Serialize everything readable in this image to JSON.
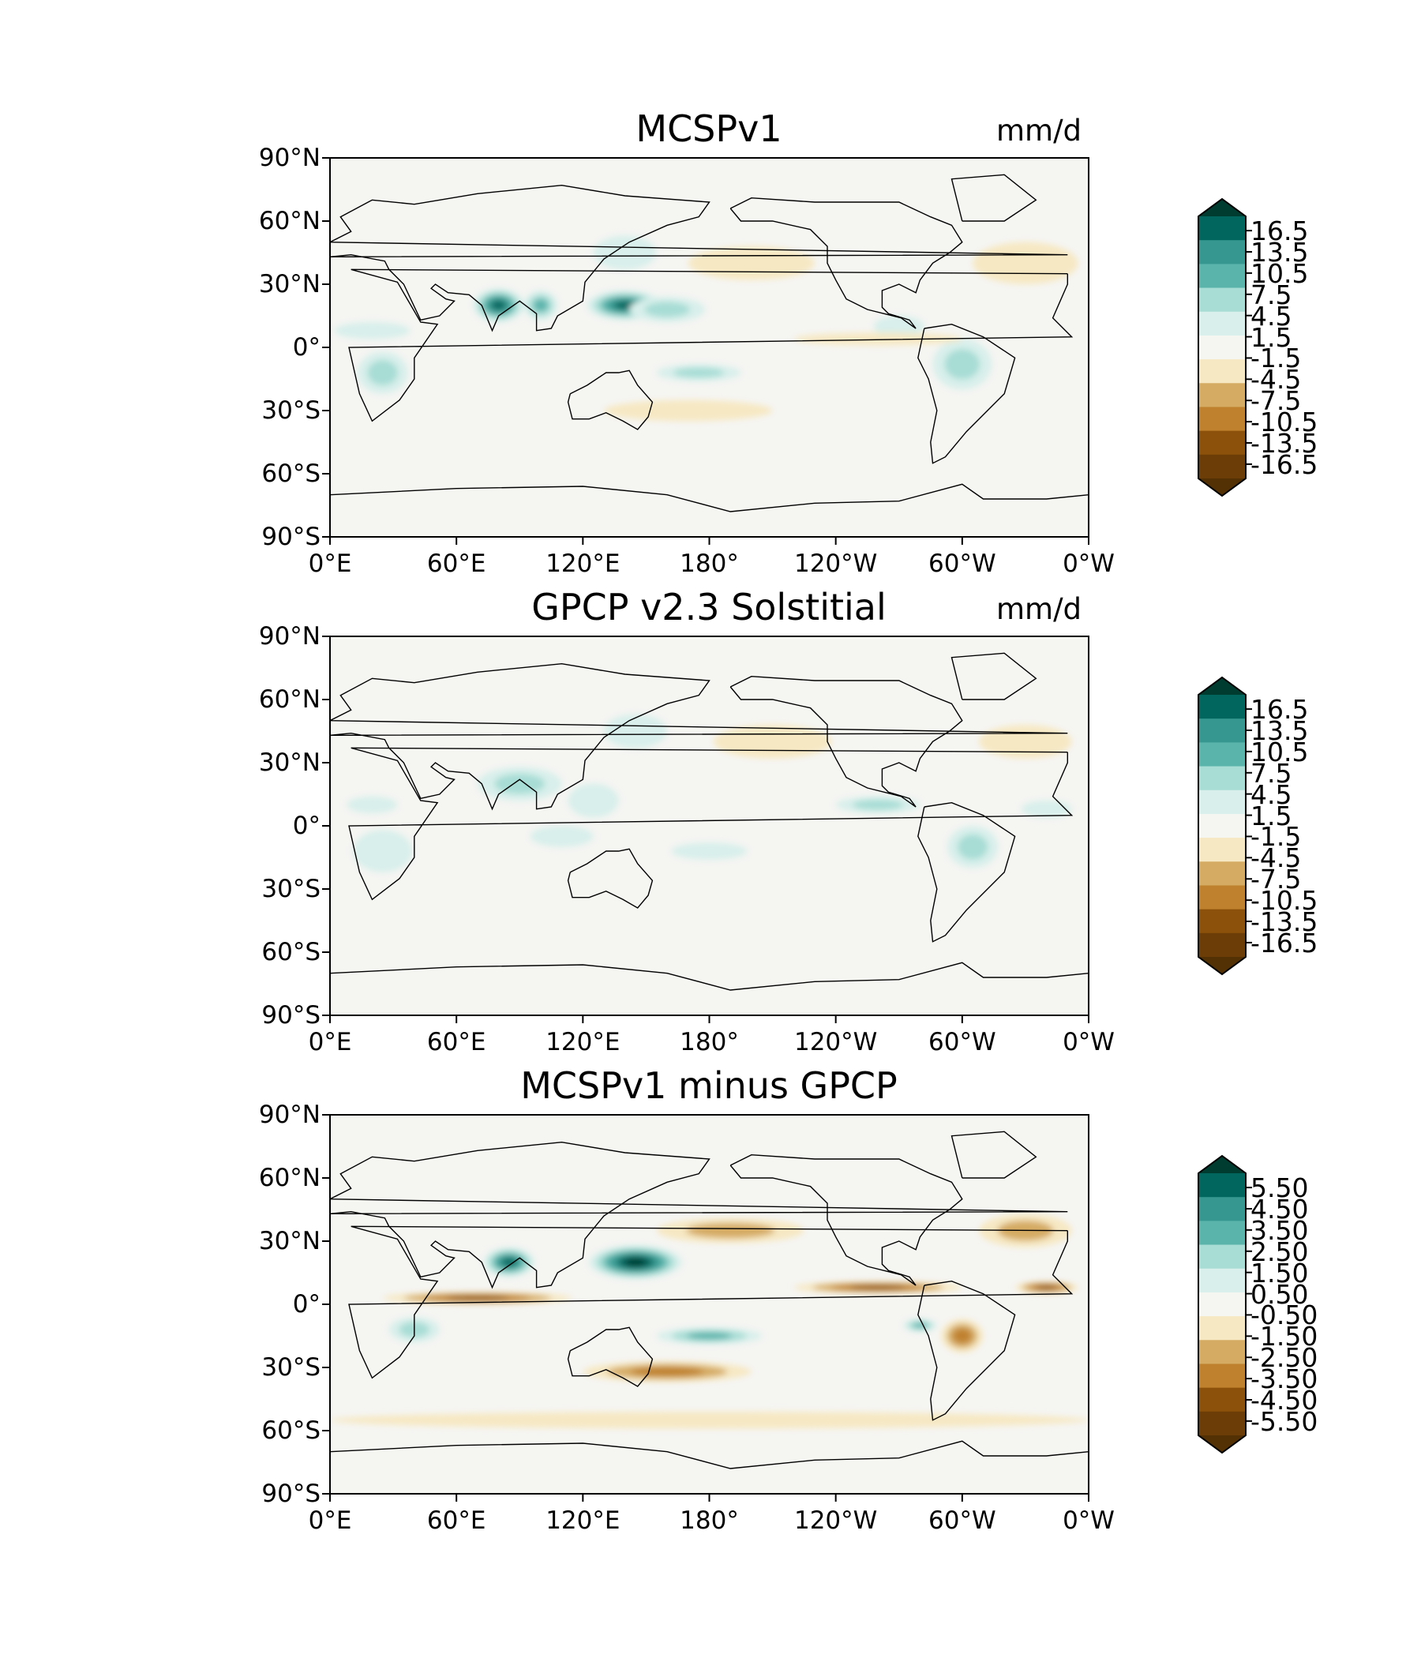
{
  "chart_data": [
    {
      "type": "heatmap",
      "title": "MCSPv1",
      "units": "mm/d",
      "xlabel": "",
      "ylabel": "",
      "xticks": [
        "0°E",
        "60°E",
        "120°E",
        "180°",
        "120°W",
        "60°W",
        "0°W"
      ],
      "yticks": [
        "90°N",
        "60°N",
        "30°N",
        "0°",
        "30°S",
        "60°S",
        "90°S"
      ],
      "xlim": [
        0,
        360
      ],
      "ylim": [
        -90,
        90
      ],
      "colorbar": {
        "labels": [
          "16.5",
          "13.5",
          "10.5",
          "7.5",
          "4.5",
          "1.5",
          "-1.5",
          "-4.5",
          "-7.5",
          "-10.5",
          "-13.5",
          "-16.5"
        ],
        "extend": "both"
      },
      "fields": [
        {
          "lon": 80,
          "lat": 20,
          "value": 14,
          "rx": 12,
          "ry": 8
        },
        {
          "lon": 100,
          "lat": 20,
          "value": 10,
          "rx": 8,
          "ry": 7
        },
        {
          "lon": 140,
          "lat": 20,
          "value": 16,
          "rx": 18,
          "ry": 7
        },
        {
          "lon": 160,
          "lat": 18,
          "value": 7,
          "rx": 18,
          "ry": 6
        },
        {
          "lon": 175,
          "lat": -12,
          "value": 6,
          "rx": 20,
          "ry": 4
        },
        {
          "lon": 25,
          "lat": -12,
          "value": 6,
          "rx": 12,
          "ry": 10
        },
        {
          "lon": 300,
          "lat": -8,
          "value": 6,
          "rx": 14,
          "ry": 12
        },
        {
          "lon": 270,
          "lat": 10,
          "value": 4,
          "rx": 12,
          "ry": 5
        },
        {
          "lon": 20,
          "lat": 8,
          "value": 3,
          "rx": 18,
          "ry": 4
        },
        {
          "lon": 140,
          "lat": 45,
          "value": 3,
          "rx": 15,
          "ry": 8
        },
        {
          "lon": 200,
          "lat": 40,
          "value": -3,
          "rx": 30,
          "ry": 8
        },
        {
          "lon": 330,
          "lat": 40,
          "value": -3,
          "rx": 25,
          "ry": 10
        },
        {
          "lon": 170,
          "lat": -30,
          "value": -3,
          "rx": 40,
          "ry": 5
        },
        {
          "lon": 260,
          "lat": 4,
          "value": -3,
          "rx": 40,
          "ry": 3
        }
      ]
    },
    {
      "type": "heatmap",
      "title": "GPCP v2.3 Solstitial",
      "units": "mm/d",
      "xlabel": "",
      "ylabel": "",
      "xticks": [
        "0°E",
        "60°E",
        "120°E",
        "180°",
        "120°W",
        "60°W",
        "0°W"
      ],
      "yticks": [
        "90°N",
        "60°N",
        "30°N",
        "0°",
        "30°S",
        "60°S",
        "90°S"
      ],
      "xlim": [
        0,
        360
      ],
      "ylim": [
        -90,
        90
      ],
      "colorbar": {
        "labels": [
          "16.5",
          "13.5",
          "10.5",
          "7.5",
          "4.5",
          "1.5",
          "-1.5",
          "-4.5",
          "-7.5",
          "-10.5",
          "-13.5",
          "-16.5"
        ],
        "extend": "both"
      },
      "fields": [
        {
          "lon": 90,
          "lat": 20,
          "value": 7,
          "rx": 20,
          "ry": 8
        },
        {
          "lon": 125,
          "lat": 12,
          "value": 4,
          "rx": 12,
          "ry": 8
        },
        {
          "lon": 110,
          "lat": -5,
          "value": 4,
          "rx": 15,
          "ry": 5
        },
        {
          "lon": 180,
          "lat": -12,
          "value": 4,
          "rx": 18,
          "ry": 4
        },
        {
          "lon": 25,
          "lat": -12,
          "value": 4,
          "rx": 14,
          "ry": 10
        },
        {
          "lon": 305,
          "lat": -10,
          "value": 6,
          "rx": 12,
          "ry": 10
        },
        {
          "lon": 260,
          "lat": 10,
          "value": 5,
          "rx": 20,
          "ry": 4
        },
        {
          "lon": 340,
          "lat": 8,
          "value": 4,
          "rx": 12,
          "ry": 4
        },
        {
          "lon": 20,
          "lat": 10,
          "value": 4,
          "rx": 12,
          "ry": 4
        },
        {
          "lon": 145,
          "lat": 45,
          "value": 2,
          "rx": 15,
          "ry": 8
        },
        {
          "lon": 210,
          "lat": 40,
          "value": -2,
          "rx": 28,
          "ry": 8
        },
        {
          "lon": 330,
          "lat": 40,
          "value": -2,
          "rx": 22,
          "ry": 8
        }
      ]
    },
    {
      "type": "heatmap",
      "title": "MCSPv1 minus GPCP",
      "units": "",
      "xlabel": "",
      "ylabel": "",
      "xticks": [
        "0°E",
        "60°E",
        "120°E",
        "180°",
        "120°W",
        "60°W",
        "0°W"
      ],
      "yticks": [
        "90°N",
        "60°N",
        "30°N",
        "0°",
        "30°S",
        "60°S",
        "90°S"
      ],
      "xlim": [
        0,
        360
      ],
      "ylim": [
        -90,
        90
      ],
      "colorbar": {
        "labels": [
          "5.50",
          "4.50",
          "3.50",
          "2.50",
          "1.50",
          "0.50",
          "-0.50",
          "-1.50",
          "-2.50",
          "-3.50",
          "-4.50",
          "-5.50"
        ],
        "extend": "both"
      },
      "fields": [
        {
          "lon": 145,
          "lat": 20,
          "value": 6,
          "rx": 22,
          "ry": 8
        },
        {
          "lon": 85,
          "lat": 20,
          "value": 5,
          "rx": 12,
          "ry": 7
        },
        {
          "lon": 180,
          "lat": -15,
          "value": 3,
          "rx": 25,
          "ry": 4
        },
        {
          "lon": 70,
          "lat": 3,
          "value": -4,
          "rx": 45,
          "ry": 3
        },
        {
          "lon": 260,
          "lat": 8,
          "value": -4,
          "rx": 40,
          "ry": 3
        },
        {
          "lon": 340,
          "lat": 8,
          "value": -4,
          "rx": 15,
          "ry": 3
        },
        {
          "lon": 160,
          "lat": -32,
          "value": -3,
          "rx": 40,
          "ry": 5
        },
        {
          "lon": 190,
          "lat": 35,
          "value": -2,
          "rx": 35,
          "ry": 6
        },
        {
          "lon": 180,
          "lat": -55,
          "value": -1,
          "rx": 180,
          "ry": 4
        },
        {
          "lon": 300,
          "lat": -15,
          "value": -3,
          "rx": 10,
          "ry": 8
        },
        {
          "lon": 40,
          "lat": -12,
          "value": 2,
          "rx": 12,
          "ry": 6
        },
        {
          "lon": 330,
          "lat": 35,
          "value": -2,
          "rx": 22,
          "ry": 8
        },
        {
          "lon": 280,
          "lat": -10,
          "value": 3,
          "rx": 8,
          "ry": 3
        }
      ]
    }
  ],
  "colors": {
    "palette": [
      "#543005",
      "#6d3d08",
      "#8c510a",
      "#bf812d",
      "#d5ab63",
      "#f6e8c3",
      "#f5f5f2",
      "#d8efeb",
      "#a7ddd5",
      "#5ab4ac",
      "#35978f",
      "#01665e",
      "#003c30"
    ]
  }
}
